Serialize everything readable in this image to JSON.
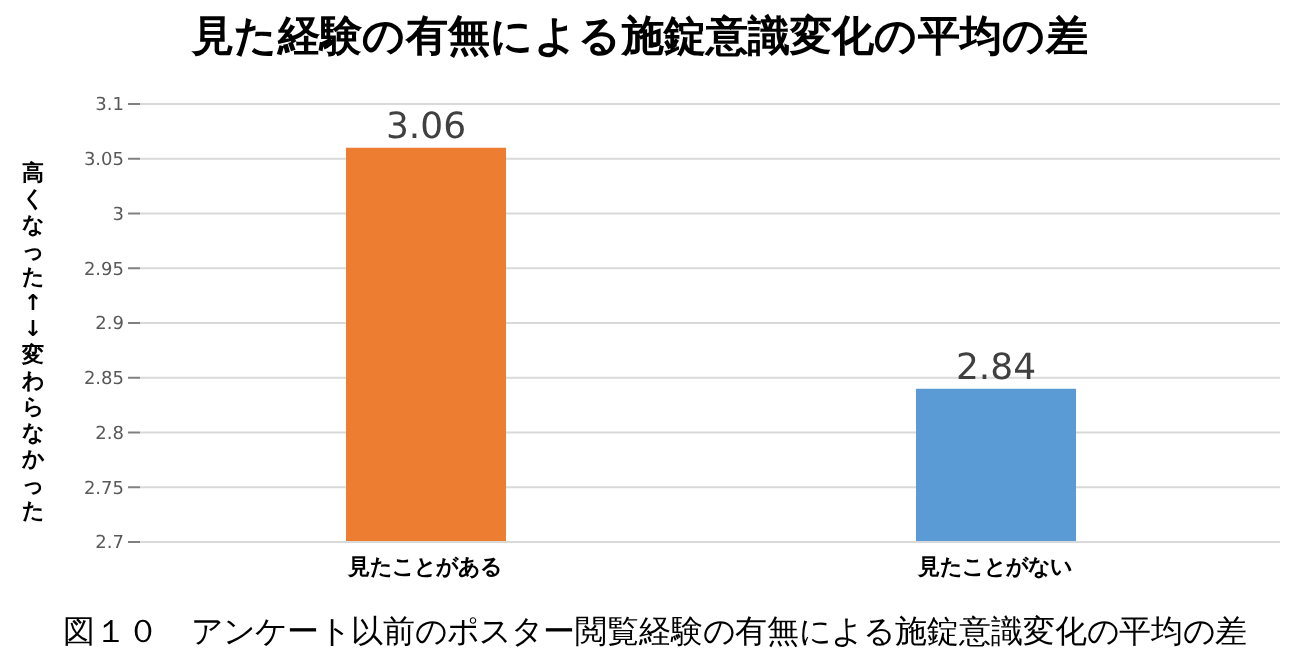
{
  "chart_data": {
    "type": "bar",
    "title": "見た経験の有無による施錠意識変化の平均の差",
    "ylabel": "高くなった↑↓変わらなかった",
    "annotations": [
      "図１０　アンケート以前のポスター閲覧経験の有無による施錠意識変化の平均の差"
    ],
    "categories": [
      "見たことがある",
      "見たことがない"
    ],
    "values": [
      3.06,
      2.84
    ],
    "colors": [
      "#ed7d31",
      "#5b9bd5"
    ],
    "ylim": [
      2.7,
      3.1
    ],
    "yticks": [
      2.7,
      2.75,
      2.8,
      2.85,
      2.9,
      2.95,
      3,
      3.05,
      3.1
    ],
    "grid": "y",
    "data_labels": true
  }
}
